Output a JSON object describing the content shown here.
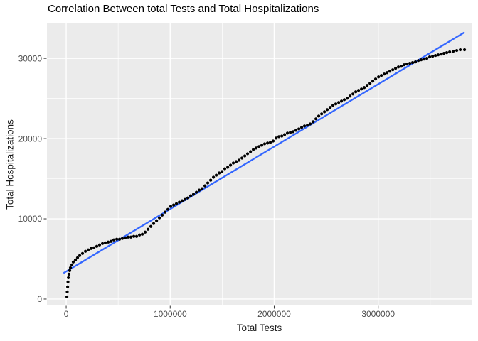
{
  "title": "Correlation Between total Tests and Total Hospitalizations",
  "chart_data": {
    "type": "scatter",
    "title": "Correlation Between total Tests and Total Hospitalizations",
    "xlabel": "Total Tests",
    "ylabel": "Total Hospitalizations",
    "x_ticks": [
      0,
      1000000,
      2000000,
      3000000
    ],
    "x_minor_ticks": [
      500000,
      1500000,
      2500000,
      3500000
    ],
    "y_ticks": [
      0,
      10000,
      20000,
      30000
    ],
    "y_minor_ticks": [
      5000,
      15000,
      25000
    ],
    "xlim": [
      -185000,
      3898000
    ],
    "ylim": [
      -800,
      34440
    ],
    "grid": "major+minor",
    "legend": "none",
    "panel_bg": "#EBEBEB",
    "grid_color": "#FFFFFF",
    "point_color": "#000000",
    "tick_mark_color": "#333333",
    "tick_label_color": "#4D4D4D",
    "smooth_line": {
      "color": "#3366FF",
      "x1": -20000,
      "y1": 3280,
      "x2": 3824000,
      "y2": 33200
    },
    "points": [
      [
        7000,
        270
      ],
      [
        10000,
        890
      ],
      [
        14000,
        1510
      ],
      [
        17000,
        2130
      ],
      [
        21000,
        2660
      ],
      [
        27000,
        3110
      ],
      [
        34000,
        3550
      ],
      [
        41000,
        3900
      ],
      [
        55000,
        4260
      ],
      [
        68000,
        4620
      ],
      [
        89000,
        4880
      ],
      [
        109000,
        5150
      ],
      [
        130000,
        5420
      ],
      [
        157000,
        5680
      ],
      [
        185000,
        5950
      ],
      [
        212000,
        6130
      ],
      [
        239000,
        6300
      ],
      [
        267000,
        6390
      ],
      [
        294000,
        6570
      ],
      [
        321000,
        6750
      ],
      [
        349000,
        6920
      ],
      [
        376000,
        7010
      ],
      [
        404000,
        7100
      ],
      [
        431000,
        7190
      ],
      [
        458000,
        7370
      ],
      [
        486000,
        7460
      ],
      [
        513000,
        7460
      ],
      [
        540000,
        7550
      ],
      [
        568000,
        7630
      ],
      [
        595000,
        7720
      ],
      [
        622000,
        7720
      ],
      [
        650000,
        7810
      ],
      [
        677000,
        7810
      ],
      [
        705000,
        7990
      ],
      [
        732000,
        8080
      ],
      [
        759000,
        8340
      ],
      [
        787000,
        8700
      ],
      [
        814000,
        9050
      ],
      [
        841000,
        9410
      ],
      [
        869000,
        9760
      ],
      [
        896000,
        10120
      ],
      [
        923000,
        10470
      ],
      [
        951000,
        10830
      ],
      [
        978000,
        11180
      ],
      [
        1005000,
        11540
      ],
      [
        1033000,
        11720
      ],
      [
        1060000,
        11890
      ],
      [
        1088000,
        12070
      ],
      [
        1115000,
        12250
      ],
      [
        1142000,
        12420
      ],
      [
        1170000,
        12600
      ],
      [
        1197000,
        12870
      ],
      [
        1224000,
        13050
      ],
      [
        1252000,
        13310
      ],
      [
        1279000,
        13580
      ],
      [
        1306000,
        13760
      ],
      [
        1334000,
        14110
      ],
      [
        1361000,
        14470
      ],
      [
        1389000,
        14820
      ],
      [
        1416000,
        15180
      ],
      [
        1443000,
        15440
      ],
      [
        1471000,
        15710
      ],
      [
        1498000,
        15890
      ],
      [
        1525000,
        16240
      ],
      [
        1553000,
        16420
      ],
      [
        1580000,
        16690
      ],
      [
        1607000,
        16950
      ],
      [
        1635000,
        17130
      ],
      [
        1662000,
        17310
      ],
      [
        1690000,
        17570
      ],
      [
        1717000,
        17840
      ],
      [
        1744000,
        18110
      ],
      [
        1772000,
        18370
      ],
      [
        1799000,
        18640
      ],
      [
        1826000,
        18820
      ],
      [
        1854000,
        19000
      ],
      [
        1881000,
        19170
      ],
      [
        1908000,
        19350
      ],
      [
        1936000,
        19440
      ],
      [
        1963000,
        19530
      ],
      [
        1990000,
        19700
      ],
      [
        2018000,
        20060
      ],
      [
        2045000,
        20240
      ],
      [
        2073000,
        20320
      ],
      [
        2100000,
        20500
      ],
      [
        2127000,
        20680
      ],
      [
        2155000,
        20770
      ],
      [
        2182000,
        20860
      ],
      [
        2209000,
        21030
      ],
      [
        2237000,
        21210
      ],
      [
        2264000,
        21390
      ],
      [
        2291000,
        21570
      ],
      [
        2319000,
        21660
      ],
      [
        2346000,
        21830
      ],
      [
        2374000,
        22100
      ],
      [
        2401000,
        22460
      ],
      [
        2428000,
        22810
      ],
      [
        2456000,
        23080
      ],
      [
        2483000,
        23340
      ],
      [
        2510000,
        23610
      ],
      [
        2538000,
        23880
      ],
      [
        2565000,
        24140
      ],
      [
        2592000,
        24320
      ],
      [
        2620000,
        24500
      ],
      [
        2647000,
        24670
      ],
      [
        2674000,
        24850
      ],
      [
        2702000,
        25030
      ],
      [
        2729000,
        25300
      ],
      [
        2757000,
        25560
      ],
      [
        2784000,
        25830
      ],
      [
        2811000,
        26010
      ],
      [
        2839000,
        26180
      ],
      [
        2866000,
        26360
      ],
      [
        2893000,
        26630
      ],
      [
        2921000,
        26890
      ],
      [
        2948000,
        27160
      ],
      [
        2975000,
        27430
      ],
      [
        3003000,
        27690
      ],
      [
        3030000,
        27870
      ],
      [
        3058000,
        28050
      ],
      [
        3085000,
        28220
      ],
      [
        3112000,
        28400
      ],
      [
        3140000,
        28580
      ],
      [
        3167000,
        28760
      ],
      [
        3194000,
        28930
      ],
      [
        3222000,
        29020
      ],
      [
        3249000,
        29200
      ],
      [
        3276000,
        29290
      ],
      [
        3304000,
        29380
      ],
      [
        3331000,
        29470
      ],
      [
        3358000,
        29560
      ],
      [
        3386000,
        29730
      ],
      [
        3413000,
        29820
      ],
      [
        3441000,
        29910
      ],
      [
        3468000,
        30000
      ],
      [
        3495000,
        30180
      ],
      [
        3523000,
        30270
      ],
      [
        3550000,
        30360
      ],
      [
        3577000,
        30440
      ],
      [
        3605000,
        30530
      ],
      [
        3632000,
        30620
      ],
      [
        3659000,
        30710
      ],
      [
        3687000,
        30800
      ],
      [
        3721000,
        30890
      ],
      [
        3755000,
        30980
      ],
      [
        3789000,
        31070
      ],
      [
        3830000,
        31070
      ]
    ]
  }
}
